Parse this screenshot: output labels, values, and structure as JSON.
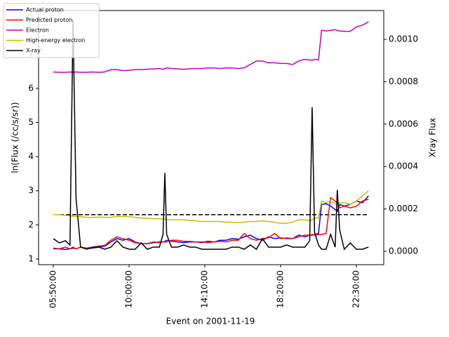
{
  "chart_data": {
    "type": "line",
    "xlabel": "Event on 2001-11-19",
    "ylabel": "ln(Flux (/cc/s/sr))",
    "y2label": "Xray Flux",
    "x": [
      350,
      370,
      390,
      405,
      415,
      425,
      440,
      460,
      480,
      500,
      520,
      540,
      560,
      580,
      600,
      620,
      640,
      660,
      680,
      700,
      712,
      718,
      724,
      740,
      760,
      780,
      800,
      820,
      840,
      860,
      880,
      900,
      920,
      940,
      960,
      980,
      1000,
      1020,
      1040,
      1060,
      1080,
      1100,
      1120,
      1140,
      1160,
      1180,
      1196,
      1204,
      1212,
      1225,
      1235,
      1250,
      1265,
      1280,
      1287,
      1295,
      1310,
      1330,
      1350,
      1370,
      1390
    ],
    "xlim": [
      301.4,
      1440.3
    ],
    "xticks": [
      {
        "value": 350,
        "label": "05:50:00"
      },
      {
        "value": 600,
        "label": "10:00:00"
      },
      {
        "value": 850,
        "label": "14:10:00"
      },
      {
        "value": 1100,
        "label": "18:20:00"
      },
      {
        "value": 1350,
        "label": "22:30:00"
      }
    ],
    "ylim": [
      0.835,
      8.28
    ],
    "yticks": [
      1,
      2,
      3,
      4,
      5,
      6,
      7
    ],
    "y2lim": [
      -6.29e-05,
      0.001136
    ],
    "y2ticks": [
      {
        "value": 0,
        "label": "0.0000"
      },
      {
        "value": 0.0002,
        "label": "0.0002"
      },
      {
        "value": 0.0004,
        "label": "0.0004"
      },
      {
        "value": 0.0006,
        "label": "0.0006"
      },
      {
        "value": 0.0008,
        "label": "0.0008"
      },
      {
        "value": 0.001,
        "label": "0.0010"
      }
    ],
    "hline": {
      "value": 2.3,
      "color": "#000000",
      "style": "dashed"
    },
    "legend": "upper left",
    "series": [
      {
        "name": "Actual proton",
        "color": "#0000ff",
        "values": [
          1.3,
          1.3,
          1.28,
          1.3,
          1.32,
          1.3,
          1.35,
          1.3,
          1.32,
          1.35,
          1.38,
          1.5,
          1.6,
          1.55,
          1.6,
          1.5,
          1.45,
          1.45,
          1.48,
          1.5,
          1.5,
          1.52,
          1.55,
          1.52,
          1.5,
          1.48,
          1.5,
          1.5,
          1.48,
          1.52,
          1.5,
          1.55,
          1.55,
          1.6,
          1.58,
          1.65,
          1.7,
          1.6,
          1.55,
          1.65,
          1.6,
          1.62,
          1.6,
          1.6,
          1.7,
          1.65,
          1.7,
          1.7,
          1.72,
          1.75,
          2.6,
          2.62,
          2.55,
          2.45,
          2.4,
          2.6,
          2.55,
          2.6,
          2.7,
          2.65,
          2.85
        ]
      },
      {
        "name": "Predicted proton",
        "color": "#ff0000",
        "values": [
          1.32,
          1.3,
          1.35,
          1.3,
          1.35,
          1.3,
          1.35,
          1.32,
          1.35,
          1.38,
          1.4,
          1.55,
          1.65,
          1.6,
          1.55,
          1.48,
          1.45,
          1.45,
          1.5,
          1.48,
          1.5,
          1.5,
          1.5,
          1.55,
          1.55,
          1.52,
          1.52,
          1.5,
          1.5,
          1.48,
          1.5,
          1.52,
          1.5,
          1.55,
          1.55,
          1.75,
          1.6,
          1.55,
          1.6,
          1.62,
          1.75,
          1.6,
          1.62,
          1.6,
          1.65,
          1.7,
          1.7,
          1.72,
          1.7,
          1.72,
          1.72,
          1.75,
          2.8,
          2.7,
          2.65,
          2.5,
          2.55,
          2.5,
          2.55,
          2.7,
          2.75
        ]
      },
      {
        "name": "Electron",
        "color": "#bf00bf",
        "values": [
          6.48,
          6.47,
          6.47,
          6.48,
          6.47,
          6.48,
          6.47,
          6.47,
          6.48,
          6.47,
          6.48,
          6.55,
          6.55,
          6.52,
          6.53,
          6.55,
          6.55,
          6.56,
          6.57,
          6.58,
          6.56,
          6.58,
          6.6,
          6.58,
          6.57,
          6.56,
          6.57,
          6.58,
          6.58,
          6.6,
          6.6,
          6.58,
          6.6,
          6.6,
          6.58,
          6.6,
          6.7,
          6.8,
          6.8,
          6.75,
          6.75,
          6.73,
          6.73,
          6.7,
          6.8,
          6.85,
          6.83,
          6.82,
          6.85,
          6.83,
          7.7,
          7.68,
          7.7,
          7.72,
          7.7,
          7.68,
          7.67,
          7.67,
          7.8,
          7.85,
          7.95
        ]
      },
      {
        "name": "High-energy electron",
        "color": "#bfbf00",
        "values": [
          2.3,
          2.3,
          2.28,
          2.27,
          2.25,
          2.25,
          2.24,
          2.22,
          2.22,
          2.23,
          2.22,
          2.22,
          2.25,
          2.25,
          2.24,
          2.22,
          2.2,
          2.2,
          2.18,
          2.18,
          2.17,
          2.17,
          2.16,
          2.15,
          2.15,
          2.15,
          2.13,
          2.12,
          2.1,
          2.1,
          2.1,
          2.1,
          2.08,
          2.08,
          2.07,
          2.08,
          2.1,
          2.1,
          2.12,
          2.1,
          2.08,
          2.05,
          2.05,
          2.08,
          2.15,
          2.15,
          2.12,
          2.15,
          2.2,
          2.2,
          2.7,
          2.65,
          2.7,
          2.62,
          2.6,
          2.65,
          2.65,
          2.6,
          2.7,
          2.85,
          3.0
        ]
      },
      {
        "name": "X-ray",
        "color": "#000000",
        "axis": "y2",
        "values": [
          6e-05,
          4e-05,
          5e-05,
          3e-05,
          0.00109,
          0.00025,
          2e-05,
          1e-05,
          2e-05,
          2e-05,
          1e-05,
          2e-05,
          5e-05,
          2e-05,
          1e-05,
          1e-05,
          4e-05,
          1e-05,
          2e-05,
          2e-05,
          8e-05,
          0.00037,
          8e-05,
          2e-05,
          2e-05,
          3e-05,
          2e-05,
          2e-05,
          1e-05,
          1e-05,
          1e-05,
          1e-05,
          1e-05,
          2e-05,
          2e-05,
          1e-05,
          3e-05,
          1e-05,
          6e-05,
          2e-05,
          2e-05,
          2e-05,
          3e-05,
          2e-05,
          2e-05,
          2e-05,
          5e-05,
          0.00068,
          9e-05,
          3e-05,
          1e-05,
          1e-05,
          8e-05,
          2e-05,
          0.00029,
          0.0001,
          1e-05,
          4e-05,
          1e-05,
          1e-05,
          2e-05
        ]
      }
    ]
  }
}
